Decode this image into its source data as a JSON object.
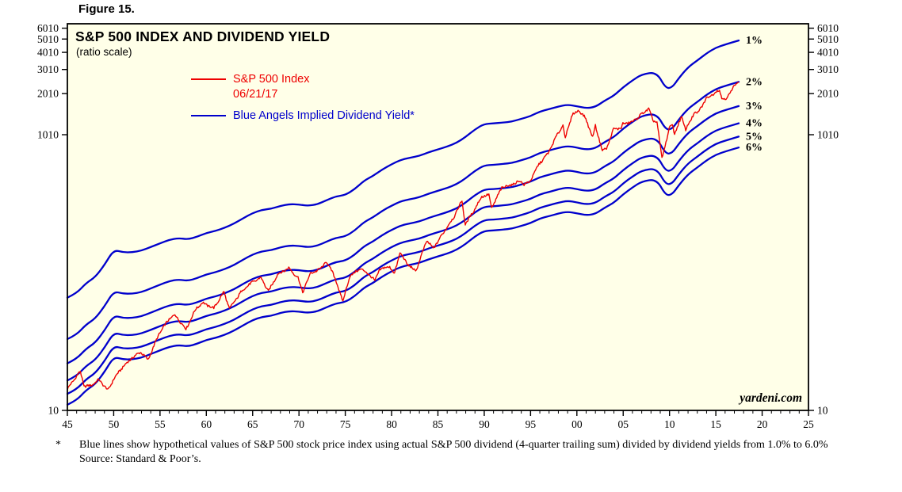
{
  "figure_label": "Figure 15.",
  "header": {
    "title": "S&P 500 INDEX AND DIVIDEND YIELD",
    "subtitle": "(ratio scale)"
  },
  "legend": {
    "sp500_label": "S&P 500 Index",
    "sp500_asof": "06/21/17",
    "blue_angels_label": "Blue Angels Implied Dividend Yield*"
  },
  "watermark": "yardeni.com",
  "footnote": {
    "marker": "*",
    "text": "Blue lines show hypothetical values of S&P 500 stock price index using actual S&P 500 dividend (4-quarter trailing sum) divided by dividend yields from 1.0% to 6.0%",
    "source": "Source: Standard & Poor’s."
  },
  "colors": {
    "sp500": "#EE0000",
    "blue_angels": "#0000CC",
    "plot_background": "#FFFFE8",
    "axis": "#000000"
  },
  "chart_data": {
    "type": "line",
    "title": "S&P 500 INDEX AND DIVIDEND YIELD",
    "subtitle": "(ratio scale)",
    "y_scale": "log",
    "grid": false,
    "x_axis": {
      "min": 1945,
      "max": 2025,
      "major_step": 5,
      "minor_step": 1,
      "tick_labels": [
        "45",
        "50",
        "55",
        "60",
        "65",
        "70",
        "75",
        "80",
        "85",
        "90",
        "95",
        "00",
        "05",
        "10",
        "15",
        "20",
        "25"
      ]
    },
    "y_axis": {
      "min": 10,
      "max": 6470,
      "ticks": [
        10,
        1010,
        2010,
        3010,
        4010,
        5010,
        6010
      ],
      "label_sides": "both"
    },
    "series": [
      {
        "name": "S&P 500 Index",
        "asof": "06/21/17",
        "color": "#EE0000",
        "points": [
          [
            1945.0,
            14.3
          ],
          [
            1945.9,
            17.4
          ],
          [
            1946.4,
            19.2
          ],
          [
            1946.8,
            15.0
          ],
          [
            1947.5,
            15.1
          ],
          [
            1948.4,
            16.7
          ],
          [
            1949.4,
            14.0
          ],
          [
            1950.0,
            16.9
          ],
          [
            1950.9,
            20.4
          ],
          [
            1951.9,
            23.8
          ],
          [
            1952.9,
            26.6
          ],
          [
            1953.7,
            23.3
          ],
          [
            1954.9,
            36.0
          ],
          [
            1955.9,
            45.5
          ],
          [
            1956.6,
            49.6
          ],
          [
            1957.8,
            39.0
          ],
          [
            1958.9,
            55.2
          ],
          [
            1959.6,
            60.5
          ],
          [
            1960.8,
            55.3
          ],
          [
            1961.9,
            72.6
          ],
          [
            1962.5,
            54.8
          ],
          [
            1963.9,
            75.0
          ],
          [
            1964.9,
            84.8
          ],
          [
            1965.9,
            92.4
          ],
          [
            1966.7,
            73.2
          ],
          [
            1967.7,
            97.6
          ],
          [
            1968.9,
            108.4
          ],
          [
            1969.9,
            92.1
          ],
          [
            1970.4,
            72.3
          ],
          [
            1971.3,
            101.0
          ],
          [
            1971.9,
            102.1
          ],
          [
            1972.97,
            119.1
          ],
          [
            1973.6,
            103.0
          ],
          [
            1974.75,
            62.3
          ],
          [
            1975.5,
            95.2
          ],
          [
            1976.7,
            107.5
          ],
          [
            1977.9,
            93.0
          ],
          [
            1978.2,
            86.9
          ],
          [
            1978.7,
            106.0
          ],
          [
            1979.8,
            111.0
          ],
          [
            1980.3,
            98.2
          ],
          [
            1980.9,
            140.5
          ],
          [
            1981.7,
            116.0
          ],
          [
            1982.6,
            102.4
          ],
          [
            1983.8,
            172.0
          ],
          [
            1984.5,
            150.0
          ],
          [
            1985.9,
            211.3
          ],
          [
            1986.7,
            252.8
          ],
          [
            1987.6,
            336.0
          ],
          [
            1987.95,
            223.9
          ],
          [
            1988.8,
            277.7
          ],
          [
            1989.75,
            359.8
          ],
          [
            1990.5,
            368.9
          ],
          [
            1990.8,
            295.5
          ],
          [
            1991.9,
            417.1
          ],
          [
            1992.9,
            435.7
          ],
          [
            1993.9,
            466.5
          ],
          [
            1994.3,
            438.9
          ],
          [
            1994.9,
            459.3
          ],
          [
            1995.9,
            615.9
          ],
          [
            1996.9,
            740.7
          ],
          [
            1997.7,
            960.0
          ],
          [
            1998.5,
            1186.8
          ],
          [
            1998.75,
            957.3
          ],
          [
            1999.5,
            1418.8
          ],
          [
            1999.97,
            1469.3
          ],
          [
            2000.2,
            1527.5
          ],
          [
            2000.97,
            1320.3
          ],
          [
            2001.7,
            965.8
          ],
          [
            2002.0,
            1172.5
          ],
          [
            2002.75,
            776.8
          ],
          [
            2003.2,
            800.7
          ],
          [
            2003.97,
            1111.9
          ],
          [
            2004.8,
            1130.0
          ],
          [
            2004.97,
            1211.9
          ],
          [
            2005.97,
            1248.3
          ],
          [
            2006.97,
            1418.3
          ],
          [
            2007.75,
            1565.2
          ],
          [
            2008.2,
            1280.0
          ],
          [
            2008.65,
            1255.1
          ],
          [
            2009.18,
            676.5
          ],
          [
            2009.97,
            1115.1
          ],
          [
            2010.3,
            1217.3
          ],
          [
            2010.55,
            1022.6
          ],
          [
            2011.3,
            1363.6
          ],
          [
            2011.75,
            1099.2
          ],
          [
            2012.7,
            1465.8
          ],
          [
            2012.97,
            1426.2
          ],
          [
            2013.97,
            1848.4
          ],
          [
            2014.97,
            2058.9
          ],
          [
            2015.4,
            2130.8
          ],
          [
            2015.65,
            1867.6
          ],
          [
            2016.1,
            1829.1
          ],
          [
            2016.9,
            2238.8
          ],
          [
            2017.2,
            2388.0
          ],
          [
            2017.47,
            2435.6
          ]
        ]
      },
      {
        "name": "Blue Angels Implied Dividend Yield*",
        "color": "#0000CC",
        "derivation": "implied price for yield k% = dividend * 100 / k",
        "yields_pct": [
          1,
          2,
          3,
          4,
          5,
          6
        ],
        "line_labels": [
          "1%",
          "2%",
          "3%",
          "4%",
          "5%",
          "6%"
        ],
        "dividend_points": [
          [
            1945,
            0.66
          ],
          [
            1946,
            0.71
          ],
          [
            1947,
            0.84
          ],
          [
            1948,
            0.93
          ],
          [
            1949,
            1.14
          ],
          [
            1950,
            1.47
          ],
          [
            1951,
            1.41
          ],
          [
            1952,
            1.41
          ],
          [
            1953,
            1.45
          ],
          [
            1954,
            1.54
          ],
          [
            1955,
            1.64
          ],
          [
            1956,
            1.74
          ],
          [
            1957,
            1.79
          ],
          [
            1958,
            1.75
          ],
          [
            1959,
            1.83
          ],
          [
            1960,
            1.95
          ],
          [
            1961,
            2.02
          ],
          [
            1962,
            2.13
          ],
          [
            1963,
            2.28
          ],
          [
            1964,
            2.5
          ],
          [
            1965,
            2.72
          ],
          [
            1966,
            2.87
          ],
          [
            1967,
            2.92
          ],
          [
            1968,
            3.07
          ],
          [
            1969,
            3.16
          ],
          [
            1970,
            3.14
          ],
          [
            1971,
            3.07
          ],
          [
            1972,
            3.15
          ],
          [
            1973,
            3.38
          ],
          [
            1974,
            3.6
          ],
          [
            1975,
            3.68
          ],
          [
            1976,
            4.05
          ],
          [
            1977,
            4.67
          ],
          [
            1978,
            5.07
          ],
          [
            1979,
            5.65
          ],
          [
            1980,
            6.16
          ],
          [
            1981,
            6.63
          ],
          [
            1982,
            6.87
          ],
          [
            1983,
            7.09
          ],
          [
            1984,
            7.53
          ],
          [
            1985,
            7.9
          ],
          [
            1986,
            8.28
          ],
          [
            1987,
            8.81
          ],
          [
            1988,
            9.73
          ],
          [
            1989,
            11.05
          ],
          [
            1990,
            12.1
          ],
          [
            1991,
            12.2
          ],
          [
            1992,
            12.38
          ],
          [
            1993,
            12.58
          ],
          [
            1994,
            13.18
          ],
          [
            1995,
            13.79
          ],
          [
            1996,
            14.9
          ],
          [
            1997,
            15.5
          ],
          [
            1998,
            16.2
          ],
          [
            1999,
            16.71
          ],
          [
            2000,
            16.27
          ],
          [
            2001,
            15.74
          ],
          [
            2002,
            16.08
          ],
          [
            2003,
            17.88
          ],
          [
            2004,
            19.41
          ],
          [
            2005,
            22.38
          ],
          [
            2006,
            25.05
          ],
          [
            2007,
            27.73
          ],
          [
            2008.6,
            28.85
          ],
          [
            2009.6,
            21.9
          ],
          [
            2010.3,
            22.3
          ],
          [
            2011,
            26.02
          ],
          [
            2012,
            31.25
          ],
          [
            2013,
            34.99
          ],
          [
            2014,
            39.44
          ],
          [
            2015,
            43.39
          ],
          [
            2016,
            45.7
          ],
          [
            2017.47,
            48.93
          ]
        ]
      }
    ]
  }
}
